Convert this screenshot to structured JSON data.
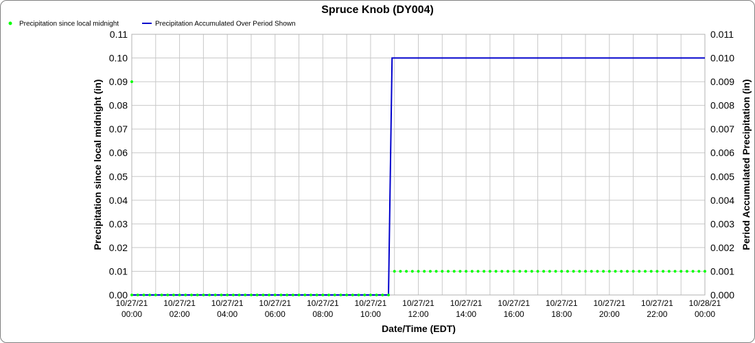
{
  "chart_data": {
    "type": "line",
    "title": "Spruce Knob (DY004)",
    "xlabel": "Date/Time (EDT)",
    "ylabel_left": "Precipitation since local midnight (in)",
    "ylabel_right": "Period Accumulated Precipitation (in)",
    "x_range_hours": [
      0,
      24
    ],
    "ylim_left": [
      0,
      0.11
    ],
    "ylim_right": [
      0,
      0.011
    ],
    "y_ticks_left": [
      "0.00",
      "0.01",
      "0.02",
      "0.03",
      "0.04",
      "0.05",
      "0.06",
      "0.07",
      "0.08",
      "0.09",
      "0.10",
      "0.11"
    ],
    "y_ticks_right": [
      "0.000",
      "0.001",
      "0.002",
      "0.003",
      "0.004",
      "0.005",
      "0.006",
      "0.007",
      "0.008",
      "0.009",
      "0.010",
      "0.011"
    ],
    "x_ticks": [
      {
        "date": "10/27/21",
        "time": "00:00",
        "hour": 0
      },
      {
        "date": "10/27/21",
        "time": "02:00",
        "hour": 2
      },
      {
        "date": "10/27/21",
        "time": "04:00",
        "hour": 4
      },
      {
        "date": "10/27/21",
        "time": "06:00",
        "hour": 6
      },
      {
        "date": "10/27/21",
        "time": "08:00",
        "hour": 8
      },
      {
        "date": "10/27/21",
        "time": "10:00",
        "hour": 10
      },
      {
        "date": "10/27/21",
        "time": "12:00",
        "hour": 12
      },
      {
        "date": "10/27/21",
        "time": "14:00",
        "hour": 14
      },
      {
        "date": "10/27/21",
        "time": "16:00",
        "hour": 16
      },
      {
        "date": "10/27/21",
        "time": "18:00",
        "hour": 18
      },
      {
        "date": "10/27/21",
        "time": "20:00",
        "hour": 20
      },
      {
        "date": "10/27/21",
        "time": "22:00",
        "hour": 22
      },
      {
        "date": "10/28/21",
        "time": "00:00",
        "hour": 24
      }
    ],
    "grid": true,
    "legend_position": "top-left",
    "series": [
      {
        "name": "Precipitation since local midnight",
        "axis": "left",
        "style": "points",
        "color": "#00ff00",
        "interval_minutes": 15,
        "segments": [
          {
            "x_start": 0,
            "x_end": 10.75,
            "value": 0.0
          },
          {
            "x_start": 11.0,
            "x_end": 24,
            "value": 0.01
          }
        ],
        "extra_points": [
          {
            "x": 0,
            "y": 0.09
          }
        ]
      },
      {
        "name": "Precipitation Accumulated Over Period Shown",
        "axis": "right",
        "style": "line",
        "color": "#0000cc",
        "points": [
          [
            0,
            0.0
          ],
          [
            10.75,
            0.0
          ],
          [
            10.9,
            0.01
          ],
          [
            24,
            0.01
          ]
        ]
      }
    ]
  }
}
